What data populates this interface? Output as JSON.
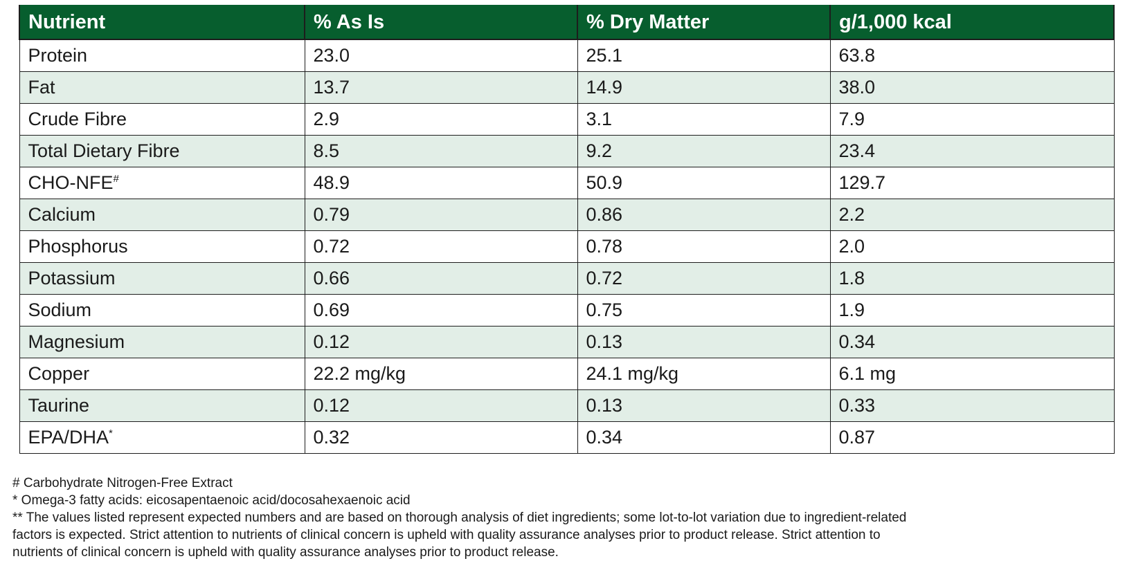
{
  "table": {
    "headers": [
      "Nutrient",
      "% As Is",
      "% Dry Matter",
      "g/1,000 kcal"
    ],
    "rows": [
      {
        "nutrient": "Protein",
        "mark": "",
        "as_is": "23.0",
        "dry_matter": "25.1",
        "per_kcal": "63.8"
      },
      {
        "nutrient": "Fat",
        "mark": "",
        "as_is": "13.7",
        "dry_matter": "14.9",
        "per_kcal": "38.0"
      },
      {
        "nutrient": "Crude Fibre",
        "mark": "",
        "as_is": "2.9",
        "dry_matter": "3.1",
        "per_kcal": "7.9"
      },
      {
        "nutrient": "Total Dietary Fibre",
        "mark": "",
        "as_is": "8.5",
        "dry_matter": "9.2",
        "per_kcal": "23.4"
      },
      {
        "nutrient": "CHO-NFE",
        "mark": "#",
        "as_is": "48.9",
        "dry_matter": "50.9",
        "per_kcal": "129.7"
      },
      {
        "nutrient": "Calcium",
        "mark": "",
        "as_is": "0.79",
        "dry_matter": "0.86",
        "per_kcal": "2.2"
      },
      {
        "nutrient": "Phosphorus",
        "mark": "",
        "as_is": "0.72",
        "dry_matter": "0.78",
        "per_kcal": "2.0"
      },
      {
        "nutrient": "Potassium",
        "mark": "",
        "as_is": "0.66",
        "dry_matter": "0.72",
        "per_kcal": "1.8"
      },
      {
        "nutrient": "Sodium",
        "mark": "",
        "as_is": "0.69",
        "dry_matter": "0.75",
        "per_kcal": "1.9"
      },
      {
        "nutrient": "Magnesium",
        "mark": "",
        "as_is": "0.12",
        "dry_matter": "0.13",
        "per_kcal": "0.34"
      },
      {
        "nutrient": "Copper",
        "mark": "",
        "as_is": "22.2 mg/kg",
        "dry_matter": "24.1 mg/kg",
        "per_kcal": "6.1 mg"
      },
      {
        "nutrient": "Taurine",
        "mark": "",
        "as_is": "0.12",
        "dry_matter": "0.13",
        "per_kcal": "0.33"
      },
      {
        "nutrient": "EPA/DHA",
        "mark": "*",
        "as_is": "0.32",
        "dry_matter": "0.34",
        "per_kcal": "0.87"
      }
    ]
  },
  "footnotes": [
    "# Carbohydrate Nitrogen-Free Extract",
    "* Omega-3 fatty acids: eicosapentaenoic acid/docosahexaenoic acid",
    "** The values listed represent expected numbers and are based on thorough analysis of diet ingredients; some lot-to-lot variation due to ingredient-related factors is expected. Strict attention to nutrients of clinical concern is upheld with quality assurance analyses prior to product release. Strict attention to nutrients of clinical concern is upheld with quality assurance analyses prior to product release."
  ],
  "colors": {
    "header_bg": "#075e2e",
    "header_text": "#ffffff",
    "stripe_bg": "#e2eee7",
    "border": "#1d1d1d"
  }
}
